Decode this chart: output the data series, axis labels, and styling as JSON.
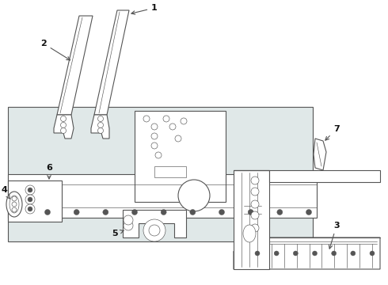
{
  "bg_color": "#ffffff",
  "line_color": "#555555",
  "label_color": "#111111",
  "gray_box": "#e0e8e8",
  "part_fill": "#ffffff",
  "lw_main": 0.8,
  "lw_detail": 0.45
}
